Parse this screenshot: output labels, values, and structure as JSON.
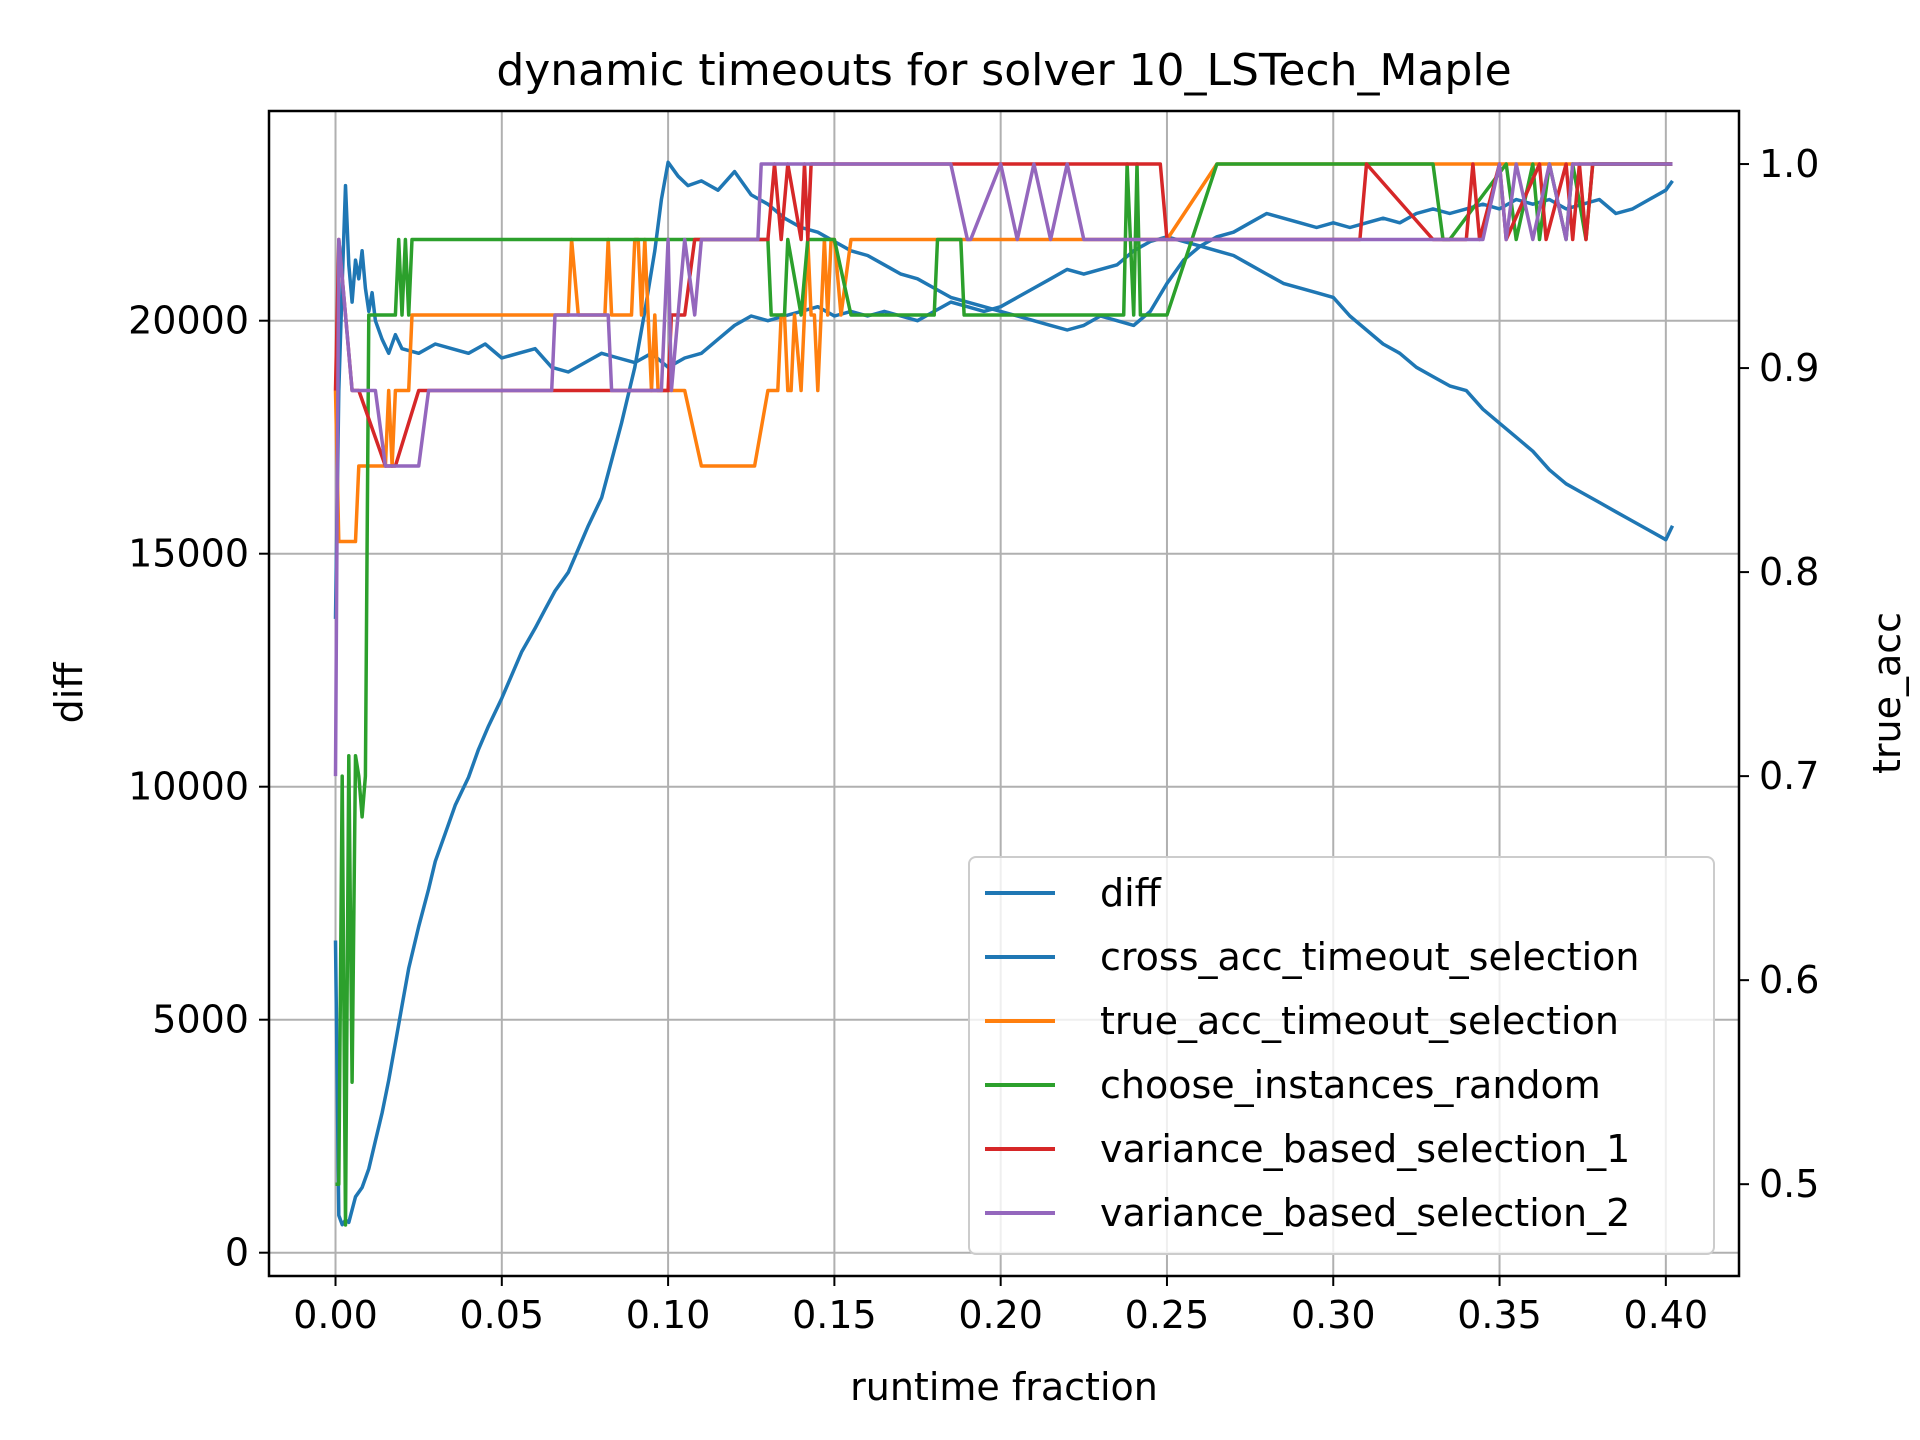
{
  "chart_data": {
    "type": "line",
    "title": "dynamic timeouts for solver 10_LSTech_Maple",
    "xlabel": "runtime fraction",
    "ylabel_left": "diff",
    "ylabel_right": "true_acc",
    "ylabel_left_color": "#008000",
    "ylabel_right_color": "#ff0000",
    "xlim": [
      -0.02,
      0.422
    ],
    "ylim_left": [
      -500,
      24500
    ],
    "ylim_right": [
      0.455,
      1.026
    ],
    "grid": true,
    "legend_position": "lower right",
    "x_ticks": [
      {
        "value": 0.0,
        "label": "0.00"
      },
      {
        "value": 0.05,
        "label": "0.05"
      },
      {
        "value": 0.1,
        "label": "0.10"
      },
      {
        "value": 0.15,
        "label": "0.15"
      },
      {
        "value": 0.2,
        "label": "0.20"
      },
      {
        "value": 0.25,
        "label": "0.25"
      },
      {
        "value": 0.3,
        "label": "0.30"
      },
      {
        "value": 0.35,
        "label": "0.35"
      },
      {
        "value": 0.4,
        "label": "0.40"
      }
    ],
    "y_left_ticks": [
      {
        "value": 0,
        "label": "0"
      },
      {
        "value": 5000,
        "label": "5000"
      },
      {
        "value": 10000,
        "label": "10000"
      },
      {
        "value": 15000,
        "label": "15000"
      },
      {
        "value": 20000,
        "label": "20000"
      }
    ],
    "y_right_ticks": [
      {
        "value": 0.5,
        "label": "0.5"
      },
      {
        "value": 0.6,
        "label": "0.6"
      },
      {
        "value": 0.7,
        "label": "0.7"
      },
      {
        "value": 0.8,
        "label": "0.8"
      },
      {
        "value": 0.9,
        "label": "0.9"
      },
      {
        "value": 1.0,
        "label": "1.0"
      }
    ],
    "series": [
      {
        "name": "diff",
        "axis": "left",
        "color": "#1f77b4",
        "x": [
          0.0,
          0.001,
          0.002,
          0.003,
          0.004,
          0.006,
          0.008,
          0.01,
          0.012,
          0.014,
          0.016,
          0.018,
          0.02,
          0.022,
          0.025,
          0.028,
          0.03,
          0.033,
          0.036,
          0.04,
          0.043,
          0.046,
          0.05,
          0.053,
          0.056,
          0.06,
          0.063,
          0.066,
          0.07,
          0.073,
          0.076,
          0.08,
          0.083,
          0.086,
          0.09,
          0.093,
          0.096,
          0.098,
          0.1,
          0.103,
          0.106,
          0.11,
          0.115,
          0.12,
          0.125,
          0.13,
          0.135,
          0.14,
          0.145,
          0.15,
          0.155,
          0.16,
          0.165,
          0.17,
          0.175,
          0.18,
          0.185,
          0.19,
          0.195,
          0.2,
          0.205,
          0.21,
          0.215,
          0.22,
          0.225,
          0.23,
          0.235,
          0.24,
          0.245,
          0.25,
          0.255,
          0.26,
          0.265,
          0.27,
          0.275,
          0.28,
          0.285,
          0.29,
          0.295,
          0.3,
          0.305,
          0.31,
          0.315,
          0.32,
          0.325,
          0.33,
          0.335,
          0.34,
          0.345,
          0.35,
          0.355,
          0.36,
          0.365,
          0.37,
          0.375,
          0.38,
          0.385,
          0.39,
          0.395,
          0.4,
          0.402
        ],
        "values": [
          6700,
          800,
          600,
          700,
          650,
          1200,
          1400,
          1800,
          2400,
          3000,
          3700,
          4500,
          5300,
          6100,
          7000,
          7800,
          8400,
          9000,
          9600,
          10200,
          10800,
          11300,
          11900,
          12400,
          12900,
          13400,
          13800,
          14200,
          14600,
          15100,
          15600,
          16200,
          17000,
          17800,
          19000,
          20200,
          21500,
          22600,
          23400,
          23100,
          22900,
          23000,
          22800,
          23200,
          22700,
          22500,
          22200,
          22000,
          21900,
          21700,
          21500,
          21400,
          21200,
          21000,
          20900,
          20700,
          20500,
          20400,
          20300,
          20200,
          20100,
          20000,
          19900,
          19800,
          19900,
          20100,
          20000,
          19900,
          20200,
          20800,
          21300,
          21600,
          21800,
          21900,
          22100,
          22300,
          22200,
          22100,
          22000,
          22100,
          22000,
          22100,
          22200,
          22100,
          22300,
          22400,
          22300,
          22400,
          22500,
          22400,
          22600,
          22500,
          22600,
          22400,
          22500,
          22600,
          22300,
          22400,
          22600,
          22800,
          23000
        ]
      },
      {
        "name": "cross_acc_timeout_selection",
        "axis": "left",
        "color": "#1f77b4",
        "x": [
          0.0,
          0.001,
          0.002,
          0.003,
          0.004,
          0.005,
          0.006,
          0.007,
          0.008,
          0.009,
          0.01,
          0.011,
          0.012,
          0.014,
          0.016,
          0.018,
          0.02,
          0.025,
          0.03,
          0.035,
          0.04,
          0.045,
          0.05,
          0.055,
          0.06,
          0.065,
          0.07,
          0.075,
          0.08,
          0.085,
          0.09,
          0.095,
          0.1,
          0.105,
          0.11,
          0.115,
          0.12,
          0.125,
          0.13,
          0.135,
          0.14,
          0.145,
          0.15,
          0.155,
          0.16,
          0.165,
          0.17,
          0.175,
          0.18,
          0.185,
          0.19,
          0.195,
          0.2,
          0.205,
          0.21,
          0.215,
          0.22,
          0.225,
          0.23,
          0.235,
          0.24,
          0.245,
          0.25,
          0.255,
          0.26,
          0.265,
          0.27,
          0.275,
          0.28,
          0.285,
          0.29,
          0.295,
          0.3,
          0.305,
          0.31,
          0.315,
          0.32,
          0.325,
          0.33,
          0.335,
          0.34,
          0.345,
          0.35,
          0.355,
          0.36,
          0.365,
          0.37,
          0.375,
          0.38,
          0.385,
          0.39,
          0.395,
          0.4,
          0.402
        ],
        "values": [
          13600,
          18500,
          20800,
          22900,
          21200,
          20400,
          21300,
          20900,
          21500,
          20700,
          20200,
          20600,
          20000,
          19600,
          19300,
          19700,
          19400,
          19300,
          19500,
          19400,
          19300,
          19500,
          19200,
          19300,
          19400,
          19000,
          18900,
          19100,
          19300,
          19200,
          19100,
          19300,
          19000,
          19200,
          19300,
          19600,
          19900,
          20100,
          20000,
          20100,
          20200,
          20300,
          20100,
          20200,
          20100,
          20200,
          20100,
          20000,
          20200,
          20400,
          20300,
          20200,
          20300,
          20500,
          20700,
          20900,
          21100,
          21000,
          21100,
          21200,
          21500,
          21700,
          21800,
          21700,
          21600,
          21500,
          21400,
          21200,
          21000,
          20800,
          20700,
          20600,
          20500,
          20100,
          19800,
          19500,
          19300,
          19000,
          18800,
          18600,
          18500,
          18100,
          17800,
          17500,
          17200,
          16800,
          16500,
          16300,
          16100,
          15900,
          15700,
          15500,
          15300,
          15600
        ]
      },
      {
        "name": "true_acc_timeout_selection",
        "axis": "right",
        "color": "#ff7f0e",
        "x": [
          0.0,
          0.001,
          0.002,
          0.003,
          0.006,
          0.007,
          0.008,
          0.009,
          0.01,
          0.011,
          0.015,
          0.016,
          0.017,
          0.018,
          0.02,
          0.022,
          0.023,
          0.025,
          0.07,
          0.071,
          0.073,
          0.074,
          0.075,
          0.081,
          0.082,
          0.083,
          0.084,
          0.085,
          0.089,
          0.09,
          0.091,
          0.092,
          0.093,
          0.094,
          0.095,
          0.096,
          0.097,
          0.098,
          0.099,
          0.1,
          0.105,
          0.11,
          0.118,
          0.126,
          0.13,
          0.133,
          0.134,
          0.135,
          0.136,
          0.137,
          0.138,
          0.14,
          0.142,
          0.143,
          0.144,
          0.145,
          0.147,
          0.148,
          0.149,
          0.15,
          0.152,
          0.155,
          0.24,
          0.25,
          0.265,
          0.33,
          0.34,
          0.37,
          0.375,
          0.402
        ],
        "values": [
          0.889,
          0.815,
          0.815,
          0.815,
          0.815,
          0.852,
          0.852,
          0.852,
          0.852,
          0.852,
          0.852,
          0.889,
          0.852,
          0.889,
          0.889,
          0.889,
          0.926,
          0.926,
          0.926,
          0.963,
          0.926,
          0.926,
          0.926,
          0.926,
          0.963,
          0.926,
          0.926,
          0.926,
          0.926,
          0.963,
          0.963,
          0.926,
          0.963,
          0.926,
          0.889,
          0.926,
          0.889,
          0.889,
          0.889,
          0.889,
          0.889,
          0.852,
          0.852,
          0.852,
          0.889,
          0.889,
          0.926,
          0.926,
          0.889,
          0.889,
          0.926,
          0.889,
          0.963,
          0.926,
          0.926,
          0.889,
          0.963,
          0.926,
          0.963,
          0.963,
          0.926,
          0.963,
          0.963,
          0.963,
          1.0,
          1.0,
          1.0,
          1.0,
          1.0,
          1.0
        ]
      },
      {
        "name": "choose_instances_random",
        "axis": "right",
        "color": "#2ca02c",
        "x": [
          0.0,
          0.001,
          0.002,
          0.003,
          0.004,
          0.005,
          0.006,
          0.007,
          0.008,
          0.009,
          0.01,
          0.011,
          0.012,
          0.013,
          0.018,
          0.019,
          0.02,
          0.021,
          0.022,
          0.023,
          0.025,
          0.03,
          0.13,
          0.131,
          0.135,
          0.136,
          0.14,
          0.142,
          0.15,
          0.155,
          0.16,
          0.18,
          0.181,
          0.188,
          0.189,
          0.19,
          0.19,
          0.2,
          0.237,
          0.238,
          0.24,
          0.241,
          0.242,
          0.243,
          0.244,
          0.245,
          0.25,
          0.265,
          0.33,
          0.333,
          0.335,
          0.352,
          0.355,
          0.36,
          0.362,
          0.365,
          0.37,
          0.372,
          0.376,
          0.378,
          0.38,
          0.402
        ],
        "values": [
          0.5,
          0.5,
          0.7,
          0.48,
          0.71,
          0.55,
          0.71,
          0.7,
          0.68,
          0.7,
          0.926,
          0.926,
          0.926,
          0.926,
          0.926,
          0.963,
          0.926,
          0.963,
          0.926,
          0.963,
          0.963,
          0.963,
          0.963,
          0.926,
          0.926,
          0.963,
          0.926,
          0.963,
          0.963,
          0.926,
          0.926,
          0.926,
          0.963,
          0.963,
          0.926,
          0.926,
          0.926,
          0.926,
          0.926,
          1.0,
          0.926,
          1.0,
          0.926,
          0.926,
          0.926,
          0.926,
          0.926,
          1.0,
          1.0,
          0.963,
          0.963,
          1.0,
          0.963,
          1.0,
          0.963,
          1.0,
          0.963,
          1.0,
          0.963,
          1.0,
          1.0,
          1.0
        ]
      },
      {
        "name": "variance_based_selection_1",
        "axis": "right",
        "color": "#d62728",
        "x": [
          0.0,
          0.001,
          0.003,
          0.005,
          0.007,
          0.015,
          0.018,
          0.025,
          0.028,
          0.03,
          0.08,
          0.082,
          0.083,
          0.1,
          0.101,
          0.105,
          0.108,
          0.11,
          0.13,
          0.132,
          0.134,
          0.136,
          0.14,
          0.141,
          0.142,
          0.143,
          0.19,
          0.19,
          0.248,
          0.25,
          0.308,
          0.31,
          0.33,
          0.34,
          0.342,
          0.344,
          0.35,
          0.352,
          0.362,
          0.364,
          0.37,
          0.372,
          0.374,
          0.376,
          0.378,
          0.402
        ],
        "values": [
          0.889,
          0.963,
          0.926,
          0.889,
          0.889,
          0.852,
          0.852,
          0.889,
          0.889,
          0.889,
          0.889,
          0.889,
          0.889,
          0.889,
          0.926,
          0.926,
          0.963,
          0.963,
          0.963,
          1.0,
          0.963,
          1.0,
          0.963,
          1.0,
          0.963,
          1.0,
          1.0,
          1.0,
          1.0,
          0.963,
          0.963,
          1.0,
          0.963,
          0.963,
          1.0,
          0.963,
          1.0,
          0.963,
          1.0,
          0.963,
          1.0,
          0.963,
          1.0,
          0.963,
          1.0,
          1.0
        ]
      },
      {
        "name": "variance_based_selection_2",
        "axis": "right",
        "color": "#9467bd",
        "x": [
          0.0,
          0.001,
          0.003,
          0.005,
          0.007,
          0.012,
          0.015,
          0.018,
          0.025,
          0.028,
          0.065,
          0.066,
          0.082,
          0.083,
          0.098,
          0.1,
          0.101,
          0.105,
          0.108,
          0.11,
          0.127,
          0.128,
          0.18,
          0.185,
          0.19,
          0.191,
          0.2,
          0.205,
          0.21,
          0.215,
          0.22,
          0.225,
          0.23,
          0.235,
          0.24,
          0.245,
          0.25,
          0.265,
          0.345,
          0.35,
          0.352,
          0.355,
          0.36,
          0.365,
          0.37,
          0.372,
          0.376,
          0.402
        ],
        "values": [
          0.7,
          0.963,
          0.926,
          0.889,
          0.889,
          0.889,
          0.852,
          0.852,
          0.852,
          0.889,
          0.889,
          0.926,
          0.926,
          0.889,
          0.889,
          0.963,
          0.889,
          0.963,
          0.926,
          0.963,
          0.963,
          1.0,
          1.0,
          1.0,
          0.963,
          0.963,
          1.0,
          0.963,
          1.0,
          0.963,
          1.0,
          0.963,
          0.963,
          0.963,
          0.963,
          0.963,
          0.963,
          0.963,
          0.963,
          1.0,
          0.963,
          1.0,
          0.963,
          1.0,
          0.963,
          1.0,
          1.0,
          1.0
        ]
      }
    ]
  }
}
